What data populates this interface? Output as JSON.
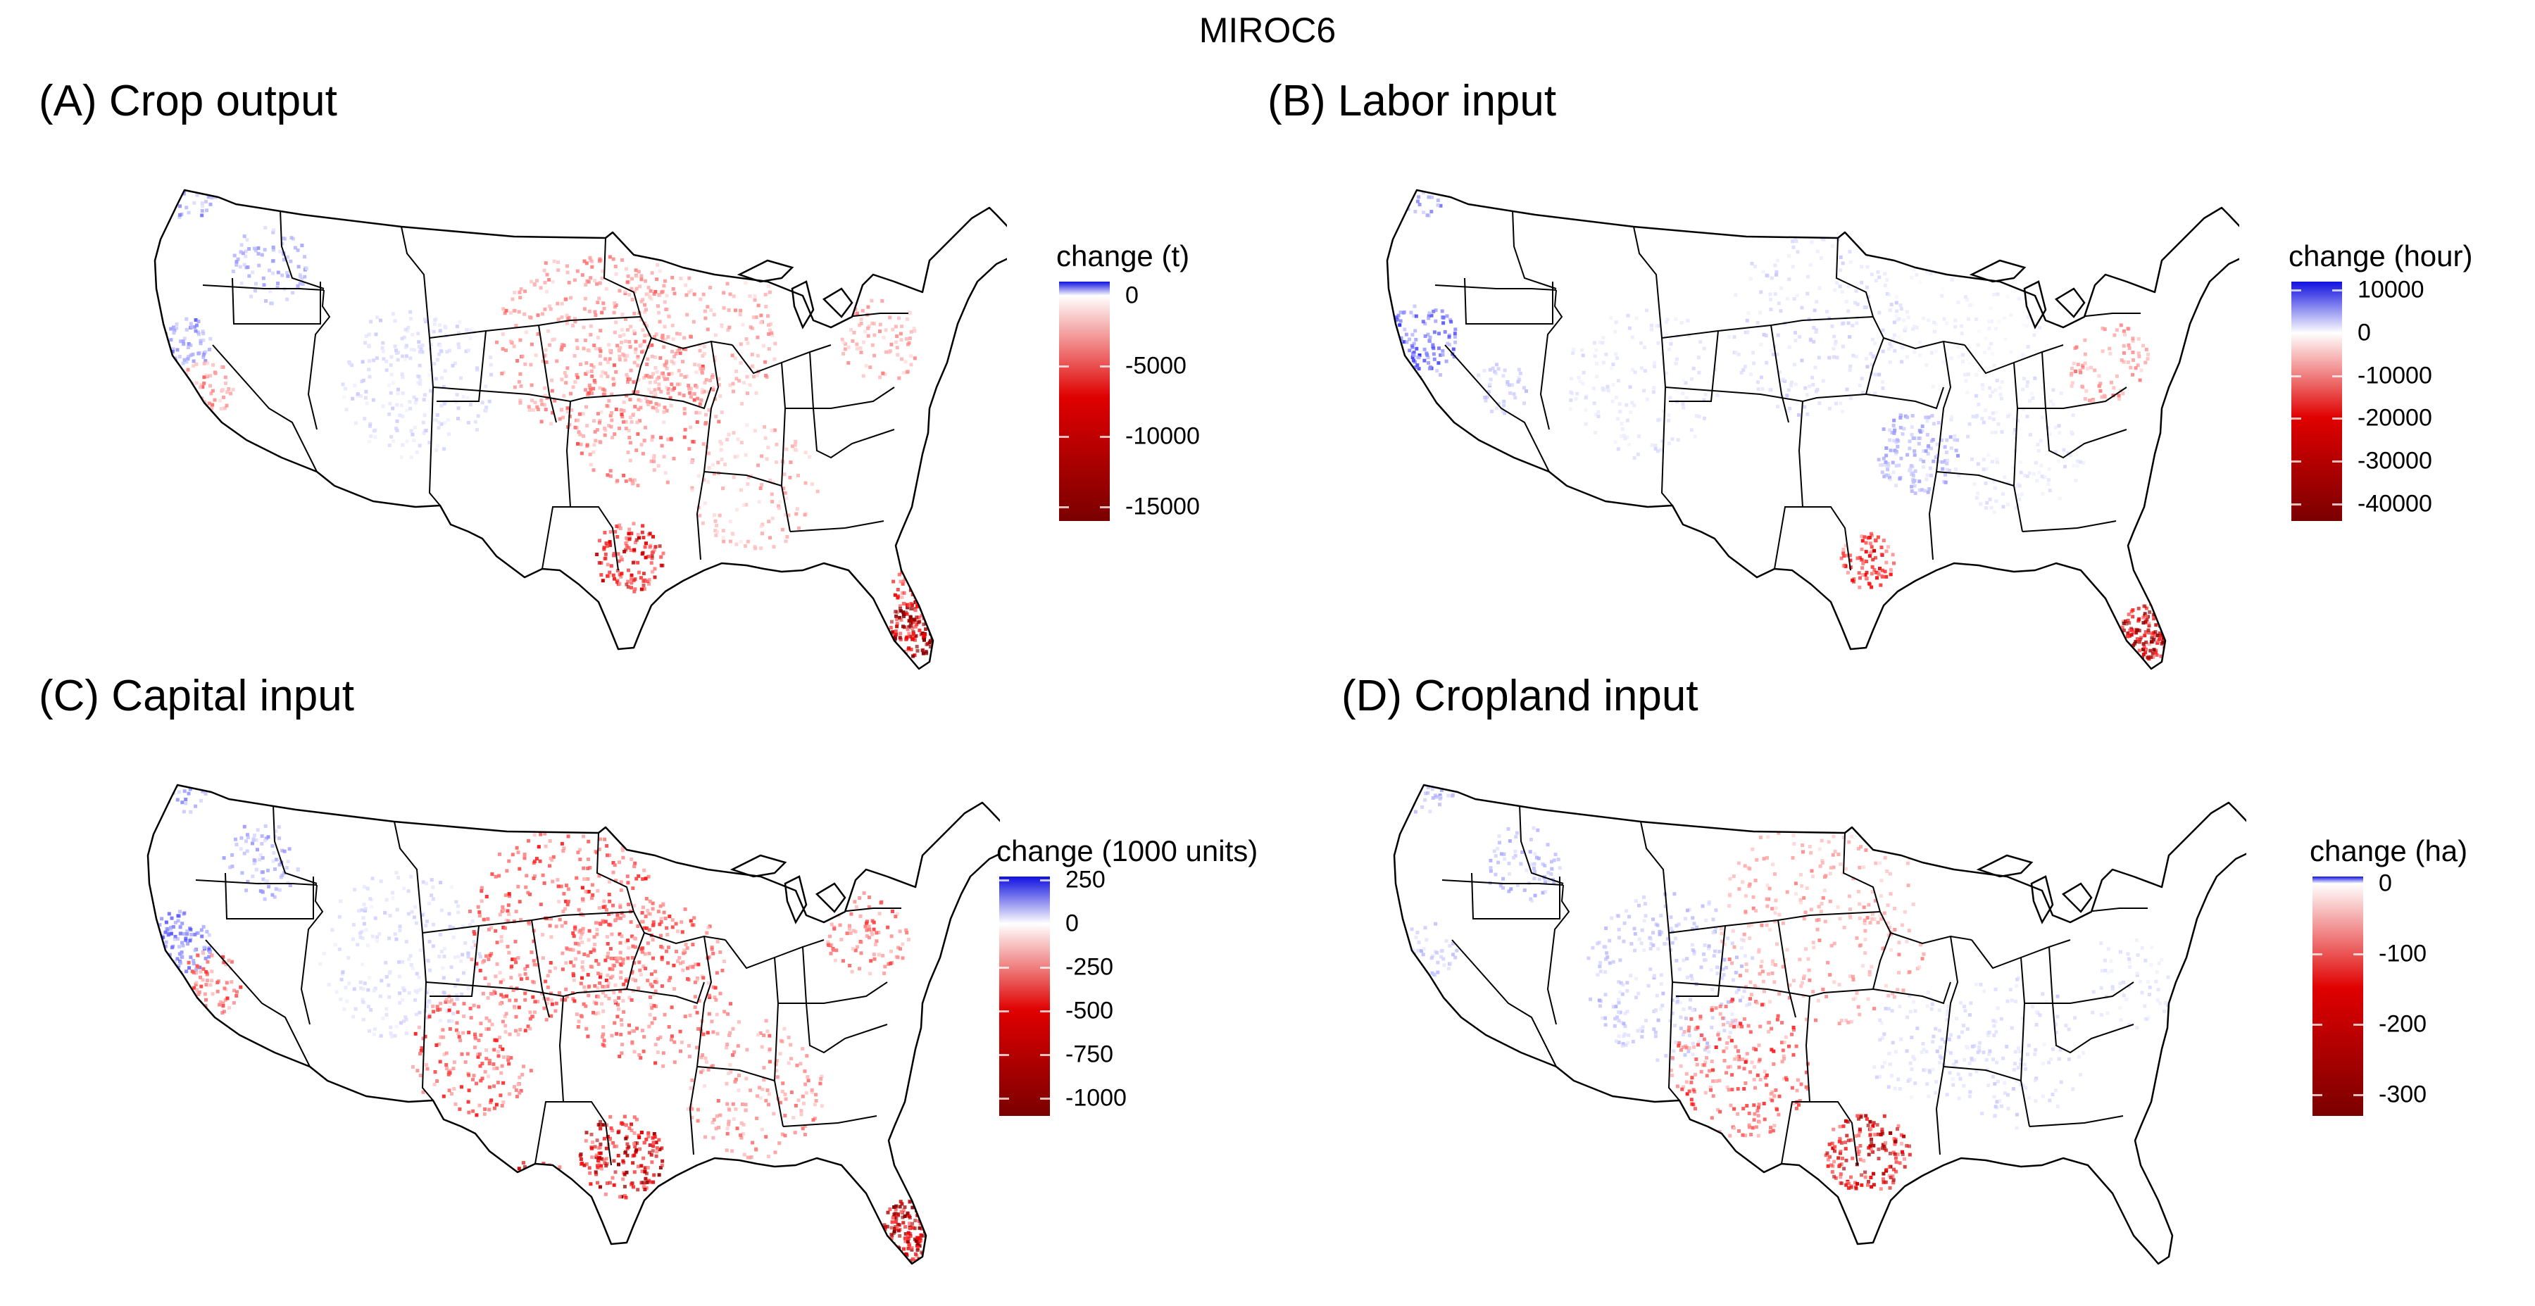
{
  "title": "MIROC6",
  "colors": {
    "positive": "#1010e0",
    "zero": "#ffffff",
    "mid_negative": "#e00000",
    "strong_negative": "#7a0000",
    "border": "#000000"
  },
  "panels": [
    {
      "id": "A",
      "label": "(A) Crop output",
      "legend_title": "change (t)",
      "legend_max": 1000,
      "legend_min": -16000,
      "ticks": [
        {
          "value": 0,
          "label": "0"
        },
        {
          "value": -5000,
          "label": "-5000"
        },
        {
          "value": -10000,
          "label": "-10000"
        },
        {
          "value": -15000,
          "label": "-15000"
        }
      ]
    },
    {
      "id": "B",
      "label": "(B) Labor input",
      "legend_title": "change (hour)",
      "legend_max": 12000,
      "legend_min": -44000,
      "ticks": [
        {
          "value": 10000,
          "label": "10000"
        },
        {
          "value": 0,
          "label": "0"
        },
        {
          "value": -10000,
          "label": "-10000"
        },
        {
          "value": -20000,
          "label": "-20000"
        },
        {
          "value": -30000,
          "label": "-30000"
        },
        {
          "value": -40000,
          "label": "-40000"
        }
      ]
    },
    {
      "id": "C",
      "label": "(C) Capital input",
      "legend_title": "change (1000 units)",
      "legend_max": 270,
      "legend_min": -1100,
      "ticks": [
        {
          "value": 250,
          "label": "250"
        },
        {
          "value": 0,
          "label": "0"
        },
        {
          "value": -250,
          "label": "-250"
        },
        {
          "value": -500,
          "label": "-500"
        },
        {
          "value": -750,
          "label": "-750"
        },
        {
          "value": -1000,
          "label": "-1000"
        }
      ]
    },
    {
      "id": "D",
      "label": "(D) Cropland input",
      "legend_title": "change (ha)",
      "legend_max": 10,
      "legend_min": -330,
      "ticks": [
        {
          "value": 0,
          "label": "0"
        },
        {
          "value": -100,
          "label": "-100"
        },
        {
          "value": -200,
          "label": "-200"
        },
        {
          "value": -300,
          "label": "-300"
        }
      ]
    }
  ]
}
